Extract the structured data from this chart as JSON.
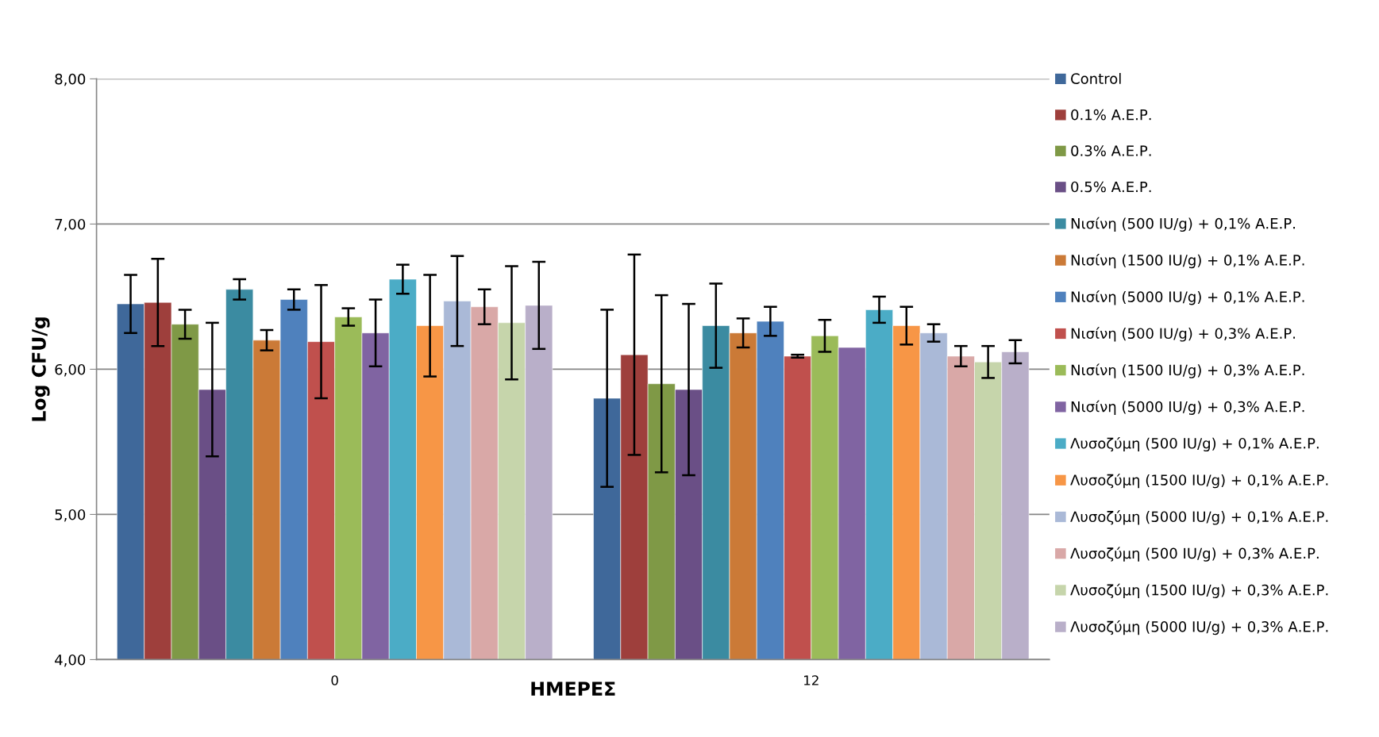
{
  "chart_data": {
    "type": "bar",
    "xlabel": "ΗΜΕΡΕΣ",
    "ylabel": "Log CFU/g",
    "categories": [
      "0",
      "12"
    ],
    "ylim": [
      4,
      8
    ],
    "yticks": [
      {
        "value": 4,
        "label": "4,00"
      },
      {
        "value": 5,
        "label": "5,00"
      },
      {
        "value": 6,
        "label": "6,00"
      },
      {
        "value": 7,
        "label": "7,00"
      },
      {
        "value": 8,
        "label": "8,00"
      }
    ],
    "grid": "y",
    "legend": "right",
    "series": [
      {
        "name": "Control",
        "color": "#3f689a",
        "values": [
          6.45,
          5.8
        ],
        "errors": [
          0.2,
          0.61
        ]
      },
      {
        "name": "0.1% Α.Ε.Ρ.",
        "color": "#9e3f3c",
        "values": [
          6.46,
          6.1
        ],
        "errors": [
          0.3,
          0.69
        ]
      },
      {
        "name": "0.3% Α.Ε.Ρ.",
        "color": "#7f9946",
        "values": [
          6.31,
          5.9
        ],
        "errors": [
          0.1,
          0.61
        ]
      },
      {
        "name": "0.5% Α.Ε.Ρ.",
        "color": "#6a4f86",
        "values": [
          5.86,
          5.86
        ],
        "errors": [
          0.46,
          0.59
        ]
      },
      {
        "name": "Νισίνη (500 IU/g) + 0,1% Α.Ε.Ρ.",
        "color": "#3b8ba1",
        "values": [
          6.55,
          6.3
        ],
        "errors": [
          0.07,
          0.29
        ]
      },
      {
        "name": "Νισίνη (1500 IU/g) + 0,1% Α.Ε.Ρ.",
        "color": "#cb7a37",
        "values": [
          6.2,
          6.25
        ],
        "errors": [
          0.07,
          0.1
        ]
      },
      {
        "name": "Νισίνη (5000 IU/g) + 0,1% Α.Ε.Ρ.",
        "color": "#4f81bd",
        "values": [
          6.48,
          6.33
        ],
        "errors": [
          0.07,
          0.1
        ]
      },
      {
        "name": "Νισίνη (500 IU/g) + 0,3% Α.Ε.Ρ.",
        "color": "#c0504d",
        "values": [
          6.19,
          6.09
        ],
        "errors": [
          0.39,
          0.01
        ]
      },
      {
        "name": "Νισίνη (1500 IU/g) + 0,3% Α.Ε.Ρ.",
        "color": "#9bbb59",
        "values": [
          6.36,
          6.23
        ],
        "errors": [
          0.06,
          0.11
        ]
      },
      {
        "name": "Νισίνη (5000 IU/g) + 0,3% Α.Ε.Ρ.",
        "color": "#8064a2",
        "values": [
          6.25,
          6.15
        ],
        "errors": [
          0.23,
          null
        ]
      },
      {
        "name": "Λυσοζύμη (500 IU/g) + 0,1% Α.Ε.Ρ.",
        "color": "#4bacc6",
        "values": [
          6.62,
          6.41
        ],
        "errors": [
          0.1,
          0.09
        ]
      },
      {
        "name": "Λυσοζύμη (1500 IU/g) + 0,1% Α.Ε.Ρ.",
        "color": "#f79646",
        "values": [
          6.3,
          6.3
        ],
        "errors": [
          0.35,
          0.13
        ]
      },
      {
        "name": "Λυσοζύμη (5000 IU/g) + 0,1% Α.Ε.Ρ.",
        "color": "#aab9d7",
        "values": [
          6.47,
          6.25
        ],
        "errors": [
          0.31,
          0.06
        ]
      },
      {
        "name": "Λυσοζύμη (500 IU/g) + 0,3% Α.Ε.Ρ.",
        "color": "#d9a8a7",
        "values": [
          6.43,
          6.09
        ],
        "errors": [
          0.12,
          0.07
        ]
      },
      {
        "name": "Λυσοζύμη (1500 IU/g) + 0,3% Α.Ε.Ρ.",
        "color": "#c6d5ab",
        "values": [
          6.32,
          6.05
        ],
        "errors": [
          0.39,
          0.11
        ]
      },
      {
        "name": "Λυσοζύμη (5000 IU/g) + 0,3% Α.Ε.Ρ.",
        "color": "#b9afc9",
        "values": [
          6.44,
          6.12
        ],
        "errors": [
          0.3,
          0.08
        ]
      }
    ]
  }
}
